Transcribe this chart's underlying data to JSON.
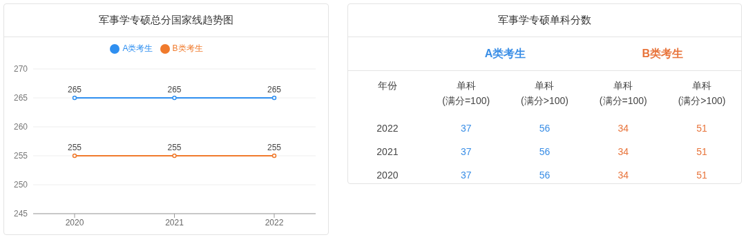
{
  "chart_data": [
    {
      "type": "line",
      "title": "军事学专硕总分国家线趋势图",
      "categories": [
        "2020",
        "2021",
        "2022"
      ],
      "series": [
        {
          "name": "A类考生",
          "color": "#2f8ff0",
          "values": [
            265,
            265,
            265
          ]
        },
        {
          "name": "B类考生",
          "color": "#f07a2c",
          "values": [
            255,
            255,
            255
          ]
        }
      ],
      "ylim": [
        245,
        270
      ],
      "yticks": [
        245,
        250,
        255,
        260,
        265,
        270
      ],
      "grid": "y",
      "legend": "top",
      "marker": "circle",
      "data_labels": true
    },
    {
      "type": "other",
      "title": "军事学专硕单科分数",
      "categories": [
        "2022",
        "2021",
        "2020"
      ],
      "series": [
        {
          "color": "#3a8ee6",
          "values": [
            37,
            37,
            37
          ]
        },
        {
          "color": "#3a8ee6",
          "values": [
            56,
            56,
            56
          ]
        },
        {
          "color": "#e8743b",
          "values": [
            34,
            34,
            34
          ]
        },
        {
          "color": "#e8743b",
          "values": [
            51,
            51,
            51
          ]
        }
      ],
      "annotations": [
        "A类考生",
        "B类考生",
        "年份",
        "单科\n(满分=100)",
        "单科\n(满分>100)",
        "单科\n(满分=100)",
        "单科\n(满分>100)"
      ],
      "data_labels": true
    }
  ]
}
